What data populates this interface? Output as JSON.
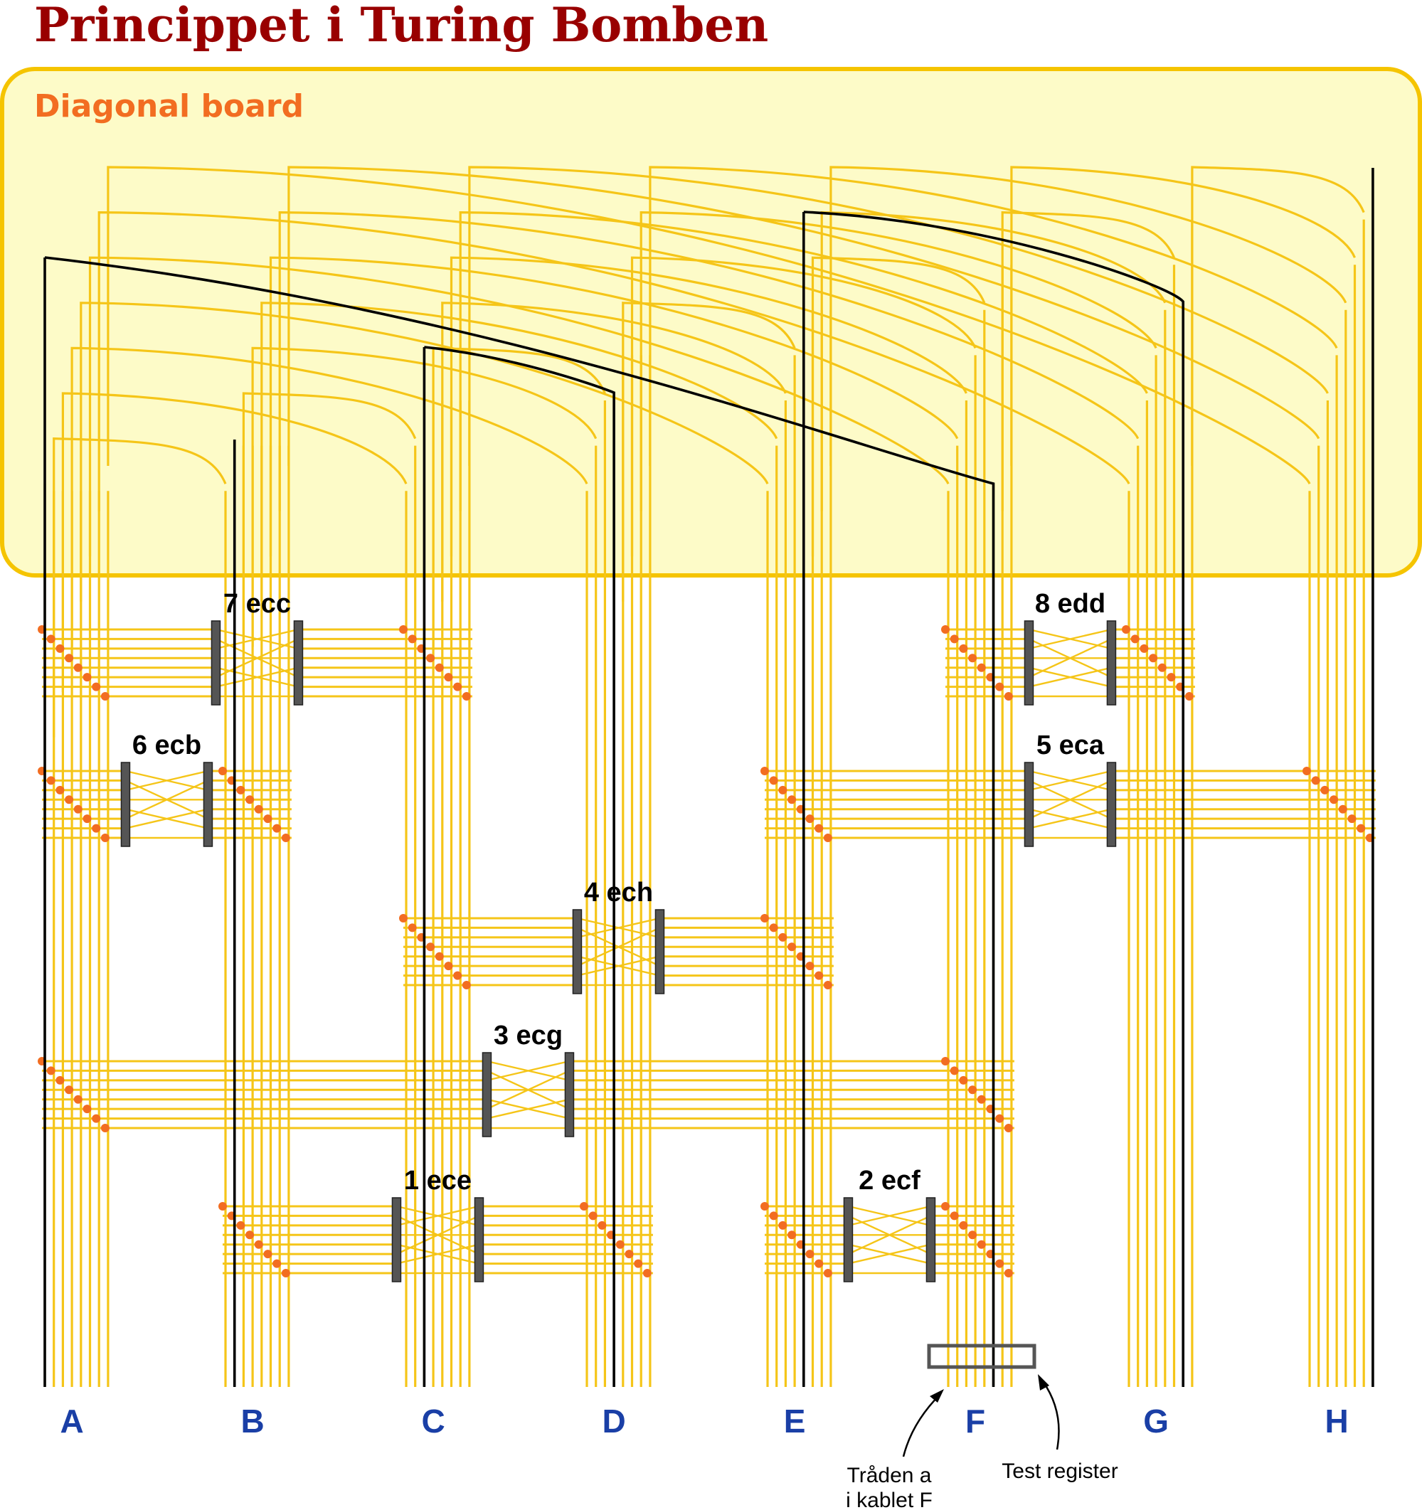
{
  "title": "Princippet i Turing Bomben",
  "diagonal_board": {
    "label": "Diagonal board"
  },
  "cables": [
    "A",
    "B",
    "C",
    "D",
    "E",
    "F",
    "G",
    "H"
  ],
  "scramblers": [
    {
      "id": "7",
      "label": "7 ecc",
      "from": "A",
      "to": "C"
    },
    {
      "id": "8",
      "label": "8 edd",
      "from": "F",
      "to": "G"
    },
    {
      "id": "6",
      "label": "6 ecb",
      "from": "A",
      "to": "B"
    },
    {
      "id": "5",
      "label": "5 eca",
      "from": "E",
      "to": "H"
    },
    {
      "id": "4",
      "label": "4 ech",
      "from": "C",
      "to": "E"
    },
    {
      "id": "3",
      "label": "3 ecg",
      "from": "A",
      "to": "F"
    },
    {
      "id": "1",
      "label": "1 ece",
      "from": "B",
      "to": "D"
    },
    {
      "id": "2",
      "label": "2 ecf",
      "from": "E",
      "to": "F"
    }
  ],
  "annotations": {
    "thread": [
      "Tråden a",
      "i kablet F"
    ],
    "test_register": "Test register"
  },
  "colors": {
    "title": "#990000",
    "board_fill": "#fdfbc8",
    "board_stroke": "#f5c400",
    "board_label": "#f26d21",
    "wire": "#f5c518",
    "active": "#000000",
    "dot": "#f26d21",
    "scrambler_fill": "#555555",
    "cable_label": "#1a3fa6"
  }
}
